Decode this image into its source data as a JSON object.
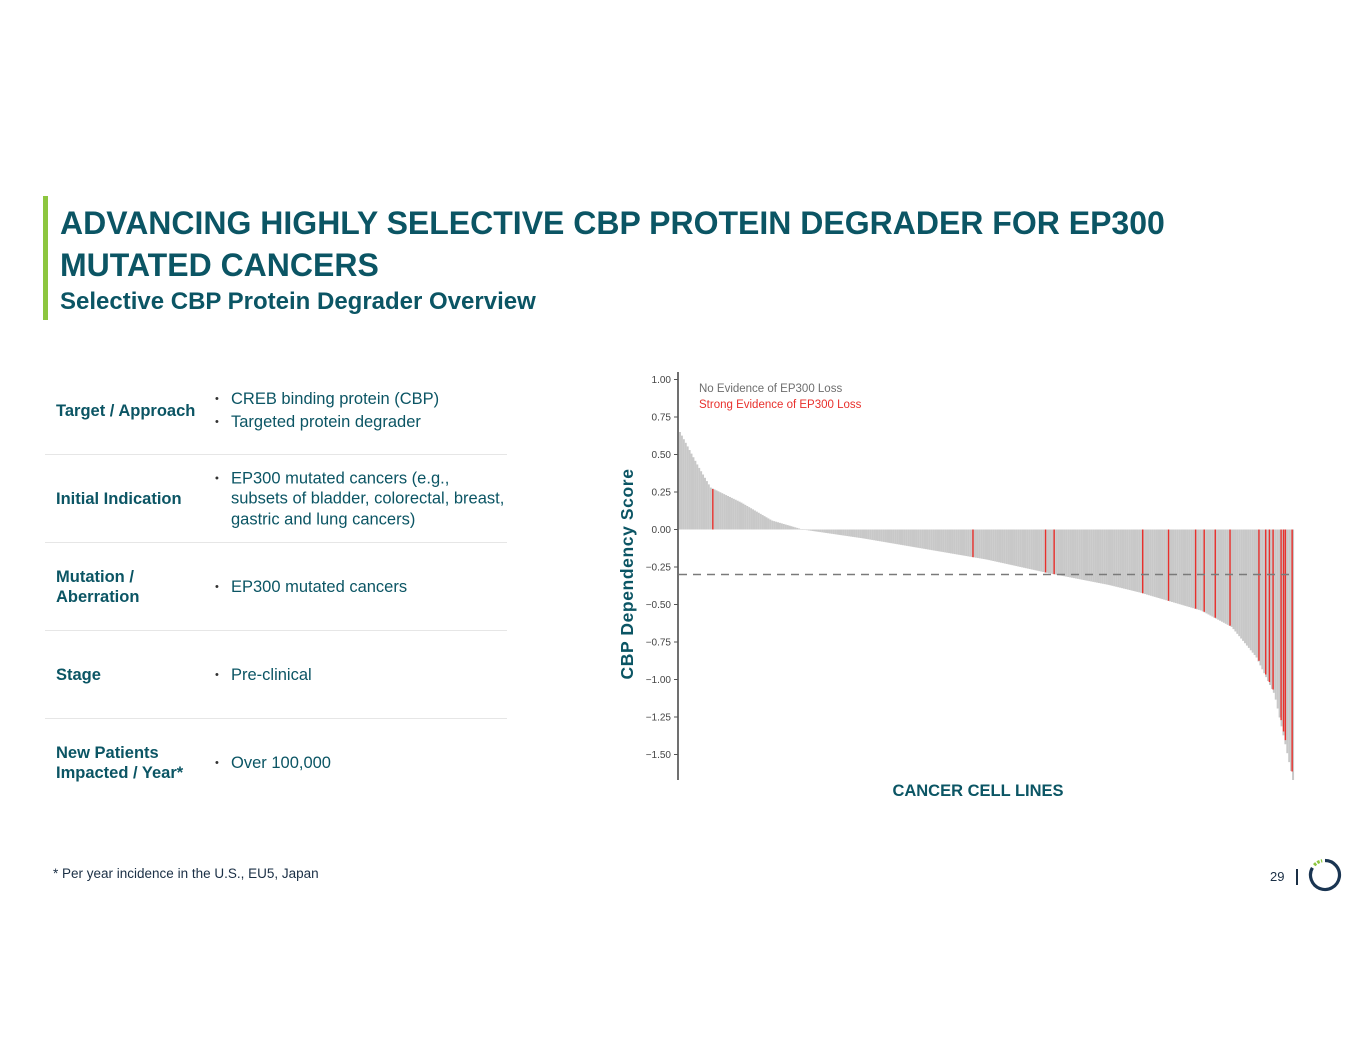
{
  "slide": {
    "title": "ADVANCING HIGHLY SELECTIVE CBP PROTEIN DEGRADER FOR EP300 MUTATED CANCERS",
    "subtitle": "Selective CBP Protein Degrader Overview",
    "footnote": "* Per year incidence in the U.S., EU5, Japan",
    "page_number": "29",
    "accent_color": "#8dc63f",
    "brand_color": "#0b5564"
  },
  "table": {
    "rows": [
      {
        "label": "Target / Approach",
        "values": [
          "CREB binding protein (CBP)",
          "Targeted protein degrader"
        ]
      },
      {
        "label": "Initial Indication",
        "values": [
          "EP300 mutated cancers (e.g., subsets of bladder, colorectal, breast, gastric and lung cancers)"
        ]
      },
      {
        "label": "Mutation / Aberration",
        "values": [
          "EP300 mutated cancers"
        ]
      },
      {
        "label": "Stage",
        "values": [
          "Pre-clinical"
        ]
      },
      {
        "label": "New Patients Impacted / Year*",
        "values": [
          "Over 100,000"
        ]
      }
    ]
  },
  "chart_data": {
    "type": "bar",
    "title": "",
    "xlabel": "CANCER CELL LINES",
    "ylabel": "CBP Dependency Score",
    "ylim": [
      -1.67,
      1.03
    ],
    "yticks": [
      1.0,
      0.75,
      0.5,
      0.25,
      0.0,
      -0.25,
      -0.5,
      -0.75,
      -1.0,
      -1.25,
      -1.5
    ],
    "ytick_labels": [
      "1.00",
      "0.75",
      "0.50",
      "0.25",
      "0.00",
      "−0.25",
      "−0.50",
      "−0.75",
      "−1.00",
      "−1.25",
      "−1.50"
    ],
    "reference_line": -0.3,
    "reference_line_style": "dashed",
    "legend_position": "top-left",
    "grid": false,
    "n_cell_lines": 320,
    "series": [
      {
        "name": "No Evidence of EP300 Loss",
        "color": "#c8c8c8"
      },
      {
        "name": "Strong Evidence of EP300 Loss",
        "color": "#e8302c"
      }
    ],
    "score_curve": [
      [
        0,
        0.65
      ],
      [
        0.03,
        0.42
      ],
      [
        0.05,
        0.28
      ],
      [
        0.1,
        0.18
      ],
      [
        0.15,
        0.06
      ],
      [
        0.2,
        0.0
      ],
      [
        0.3,
        -0.06
      ],
      [
        0.4,
        -0.13
      ],
      [
        0.5,
        -0.2
      ],
      [
        0.6,
        -0.29
      ],
      [
        0.7,
        -0.37
      ],
      [
        0.75,
        -0.42
      ],
      [
        0.85,
        -0.54
      ],
      [
        0.9,
        -0.65
      ],
      [
        0.94,
        -0.85
      ],
      [
        0.97,
        -1.1
      ],
      [
        1.0,
        -1.67
      ]
    ],
    "ep300_loss_positions": [
      0.055,
      0.478,
      0.596,
      0.61,
      0.754,
      0.796,
      0.84,
      0.854,
      0.872,
      0.896,
      0.943,
      0.954,
      0.96,
      0.966,
      0.979,
      0.983,
      0.986,
      0.997
    ]
  }
}
